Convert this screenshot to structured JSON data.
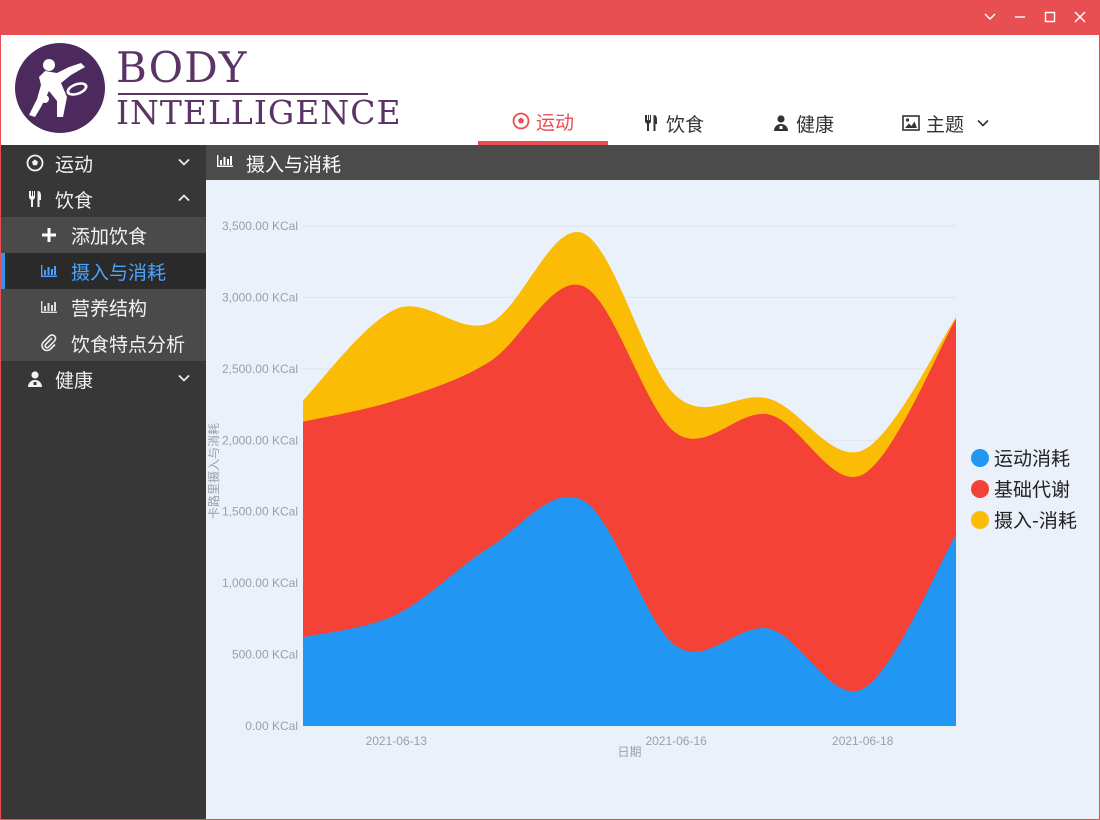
{
  "window": {
    "buttons": [
      "collapse",
      "minimize",
      "maximize",
      "close"
    ]
  },
  "brand": {
    "line1": "BODY",
    "line2": "INTELLIGENCE"
  },
  "topnav": [
    {
      "label": "运动",
      "icon": "soccer-ball-icon",
      "active": true
    },
    {
      "label": "饮食",
      "icon": "fork-knife-icon",
      "active": false
    },
    {
      "label": "健康",
      "icon": "doctor-icon",
      "active": false
    },
    {
      "label": "主题",
      "icon": "image-icon",
      "active": false,
      "dropdown": true
    }
  ],
  "sidebar": {
    "sections": [
      {
        "label": "运动",
        "icon": "soccer-ball-icon",
        "expanded": false
      },
      {
        "label": "饮食",
        "icon": "fork-knife-icon",
        "expanded": true,
        "items": [
          {
            "label": "添加饮食",
            "icon": "plus-icon",
            "active": false
          },
          {
            "label": "摄入与消耗",
            "icon": "bar-chart-icon",
            "active": true
          },
          {
            "label": "营养结构",
            "icon": "bar-chart-icon",
            "active": false
          },
          {
            "label": "饮食特点分析",
            "icon": "paperclip-icon",
            "active": false
          }
        ]
      },
      {
        "label": "健康",
        "icon": "doctor-icon",
        "expanded": false
      }
    ]
  },
  "content": {
    "title": "摄入与消耗",
    "title_icon": "bar-chart-icon"
  },
  "chart_data": {
    "type": "area",
    "stacked": true,
    "smooth": true,
    "xlabel": "日期",
    "ylabel": "卡路里摄入与消耗",
    "ylim": [
      0,
      3500
    ],
    "y_ticks": [
      0,
      500,
      1000,
      1500,
      2000,
      2500,
      3000,
      3500
    ],
    "y_tick_labels": [
      "0.00 KCal",
      "500.00 KCal",
      "1,000.00 KCal",
      "1,500.00 KCal",
      "2,000.00 KCal",
      "2,500.00 KCal",
      "3,000.00 KCal",
      "3,500.00 KCal"
    ],
    "x": [
      "2021-06-12",
      "2021-06-13",
      "2021-06-14",
      "2021-06-15",
      "2021-06-16",
      "2021-06-17",
      "2021-06-18",
      "2021-06-19"
    ],
    "x_tick_labels": [
      {
        "at": "2021-06-13",
        "label": "2021-06-13"
      },
      {
        "at": "2021-06-16",
        "label": "2021-06-16"
      },
      {
        "at": "2021-06-18",
        "label": "2021-06-18"
      }
    ],
    "grid": true,
    "legend_position": "right",
    "series": [
      {
        "name": "运动消耗",
        "color": "#2196f3",
        "values": [
          620,
          780,
          1250,
          1580,
          560,
          680,
          260,
          1340
        ]
      },
      {
        "name": "基础代谢",
        "color": "#f44336",
        "values": [
          1510,
          1500,
          1300,
          1500,
          1490,
          1500,
          1500,
          1510
        ]
      },
      {
        "name": "摄入-消耗",
        "color": "#fbbc05",
        "values": [
          150,
          640,
          270,
          370,
          260,
          110,
          170,
          10
        ]
      }
    ]
  }
}
